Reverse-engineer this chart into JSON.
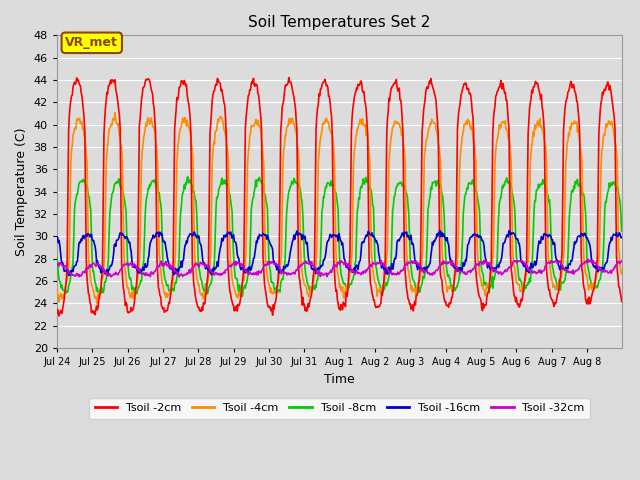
{
  "title": "Soil Temperatures Set 2",
  "xlabel": "Time",
  "ylabel": "Soil Temperature (C)",
  "ylim": [
    20,
    48
  ],
  "yticks": [
    20,
    22,
    24,
    26,
    28,
    30,
    32,
    34,
    36,
    38,
    40,
    42,
    44,
    46,
    48
  ],
  "background_color": "#dcdcdc",
  "plot_bg_color": "#dcdcdc",
  "grid_color": "#ffffff",
  "annotation_text": "VR_met",
  "annotation_bg": "#ffff00",
  "annotation_border": "#8b4513",
  "series": {
    "Tsoil -2cm": {
      "color": "#ff0000",
      "lw": 1.2
    },
    "Tsoil -4cm": {
      "color": "#ff8c00",
      "lw": 1.2
    },
    "Tsoil -8cm": {
      "color": "#00cc00",
      "lw": 1.2
    },
    "Tsoil -16cm": {
      "color": "#0000cc",
      "lw": 1.2
    },
    "Tsoil -32cm": {
      "color": "#cc00cc",
      "lw": 1.2
    }
  },
  "xtick_labels": [
    "Jul 24",
    "Jul 25",
    "Jul 26",
    "Jul 27",
    "Jul 28",
    "Jul 29",
    "Jul 30",
    "Jul 31",
    "Aug 1",
    "Aug 2",
    "Aug 3",
    "Aug 4",
    "Aug 5",
    "Aug 6",
    "Aug 7",
    "Aug 8"
  ],
  "n_days": 16,
  "pts_per_day": 48,
  "figsize": [
    6.4,
    4.8
  ],
  "dpi": 100
}
